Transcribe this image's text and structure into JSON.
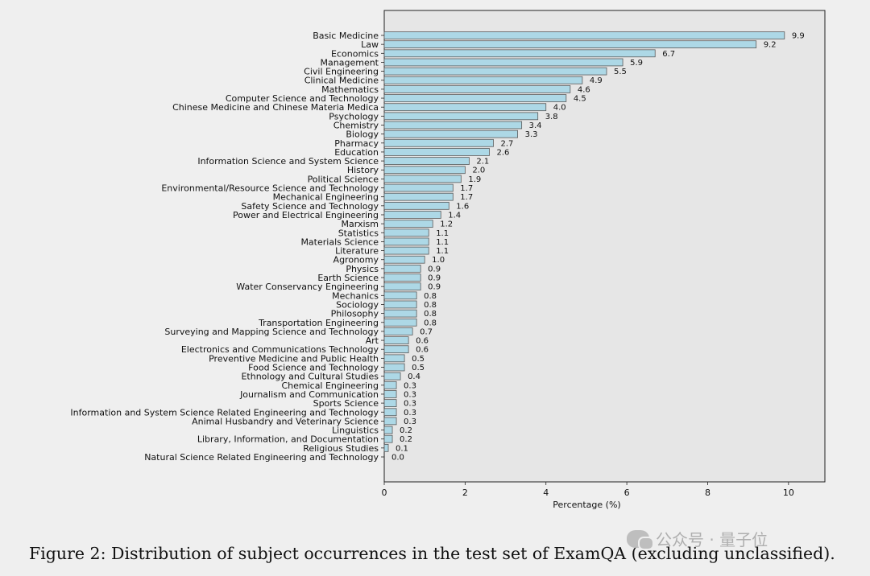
{
  "chart_data": {
    "type": "bar",
    "orientation": "horizontal",
    "categories": [
      "Basic Medicine",
      "Law",
      "Economics",
      "Management",
      "Civil Engineering",
      "Clinical Medicine",
      "Mathematics",
      "Computer Science and Technology",
      "Chinese Medicine and Chinese Materia Medica",
      "Psychology",
      "Chemistry",
      "Biology",
      "Pharmacy",
      "Education",
      "Information Science and System Science",
      "History",
      "Political Science",
      "Environmental/Resource Science and Technology",
      "Mechanical Engineering",
      "Safety Science and Technology",
      "Power and Electrical Engineering",
      "Marxism",
      "Statistics",
      "Materials Science",
      "Literature",
      "Agronomy",
      "Physics",
      "Earth Science",
      "Water Conservancy Engineering",
      "Mechanics",
      "Sociology",
      "Philosophy",
      "Transportation Engineering",
      "Surveying and Mapping Science and Technology",
      "Art",
      "Electronics and Communications Technology",
      "Preventive Medicine and Public Health",
      "Food Science and Technology",
      "Ethnology and Cultural Studies",
      "Chemical Engineering",
      "Journalism and Communication",
      "Sports Science",
      "Information and System Science Related Engineering and Technology",
      "Animal Husbandry and Veterinary Science",
      "Linguistics",
      "Library, Information, and Documentation",
      "Religious Studies",
      "Natural Science Related Engineering and Technology"
    ],
    "values": [
      9.9,
      9.2,
      6.7,
      5.9,
      5.5,
      4.9,
      4.6,
      4.5,
      4.0,
      3.8,
      3.4,
      3.3,
      2.7,
      2.6,
      2.1,
      2.0,
      1.9,
      1.7,
      1.7,
      1.6,
      1.4,
      1.2,
      1.1,
      1.1,
      1.1,
      1.0,
      0.9,
      0.9,
      0.9,
      0.8,
      0.8,
      0.8,
      0.8,
      0.7,
      0.6,
      0.6,
      0.5,
      0.5,
      0.4,
      0.3,
      0.3,
      0.3,
      0.3,
      0.3,
      0.2,
      0.2,
      0.1,
      0.0
    ],
    "value_labels": [
      "9.9",
      "9.2",
      "6.7",
      "5.9",
      "5.5",
      "4.9",
      "4.6",
      "4.5",
      "4.0",
      "3.8",
      "3.4",
      "3.3",
      "2.7",
      "2.6",
      "2.1",
      "2.0",
      "1.9",
      "1.7",
      "1.7",
      "1.6",
      "1.4",
      "1.2",
      "1.1",
      "1.1",
      "1.1",
      "1.0",
      "0.9",
      "0.9",
      "0.9",
      "0.8",
      "0.8",
      "0.8",
      "0.8",
      "0.7",
      "0.6",
      "0.6",
      "0.5",
      "0.5",
      "0.4",
      "0.3",
      "0.3",
      "0.3",
      "0.3",
      "0.3",
      "0.2",
      "0.2",
      "0.1",
      "0.0"
    ],
    "xlabel": "Percentage (%)",
    "ylabel": "",
    "xlim": [
      0,
      10.9
    ],
    "xticks": [
      0,
      2,
      4,
      6,
      8,
      10
    ],
    "xtick_labels": [
      "0",
      "2",
      "4",
      "6",
      "8",
      "10"
    ],
    "grid": false,
    "bar_color": "#add8e6",
    "bar_edge_color": "#5a5a5a",
    "plot_background": "#e6e6e6"
  },
  "caption": "Figure 2: Distribution of subject occurrences in the test set of ExamQA (excluding unclassified).",
  "watermark": {
    "text": "公众号 · 量子位",
    "icon": "wechat-icon"
  }
}
